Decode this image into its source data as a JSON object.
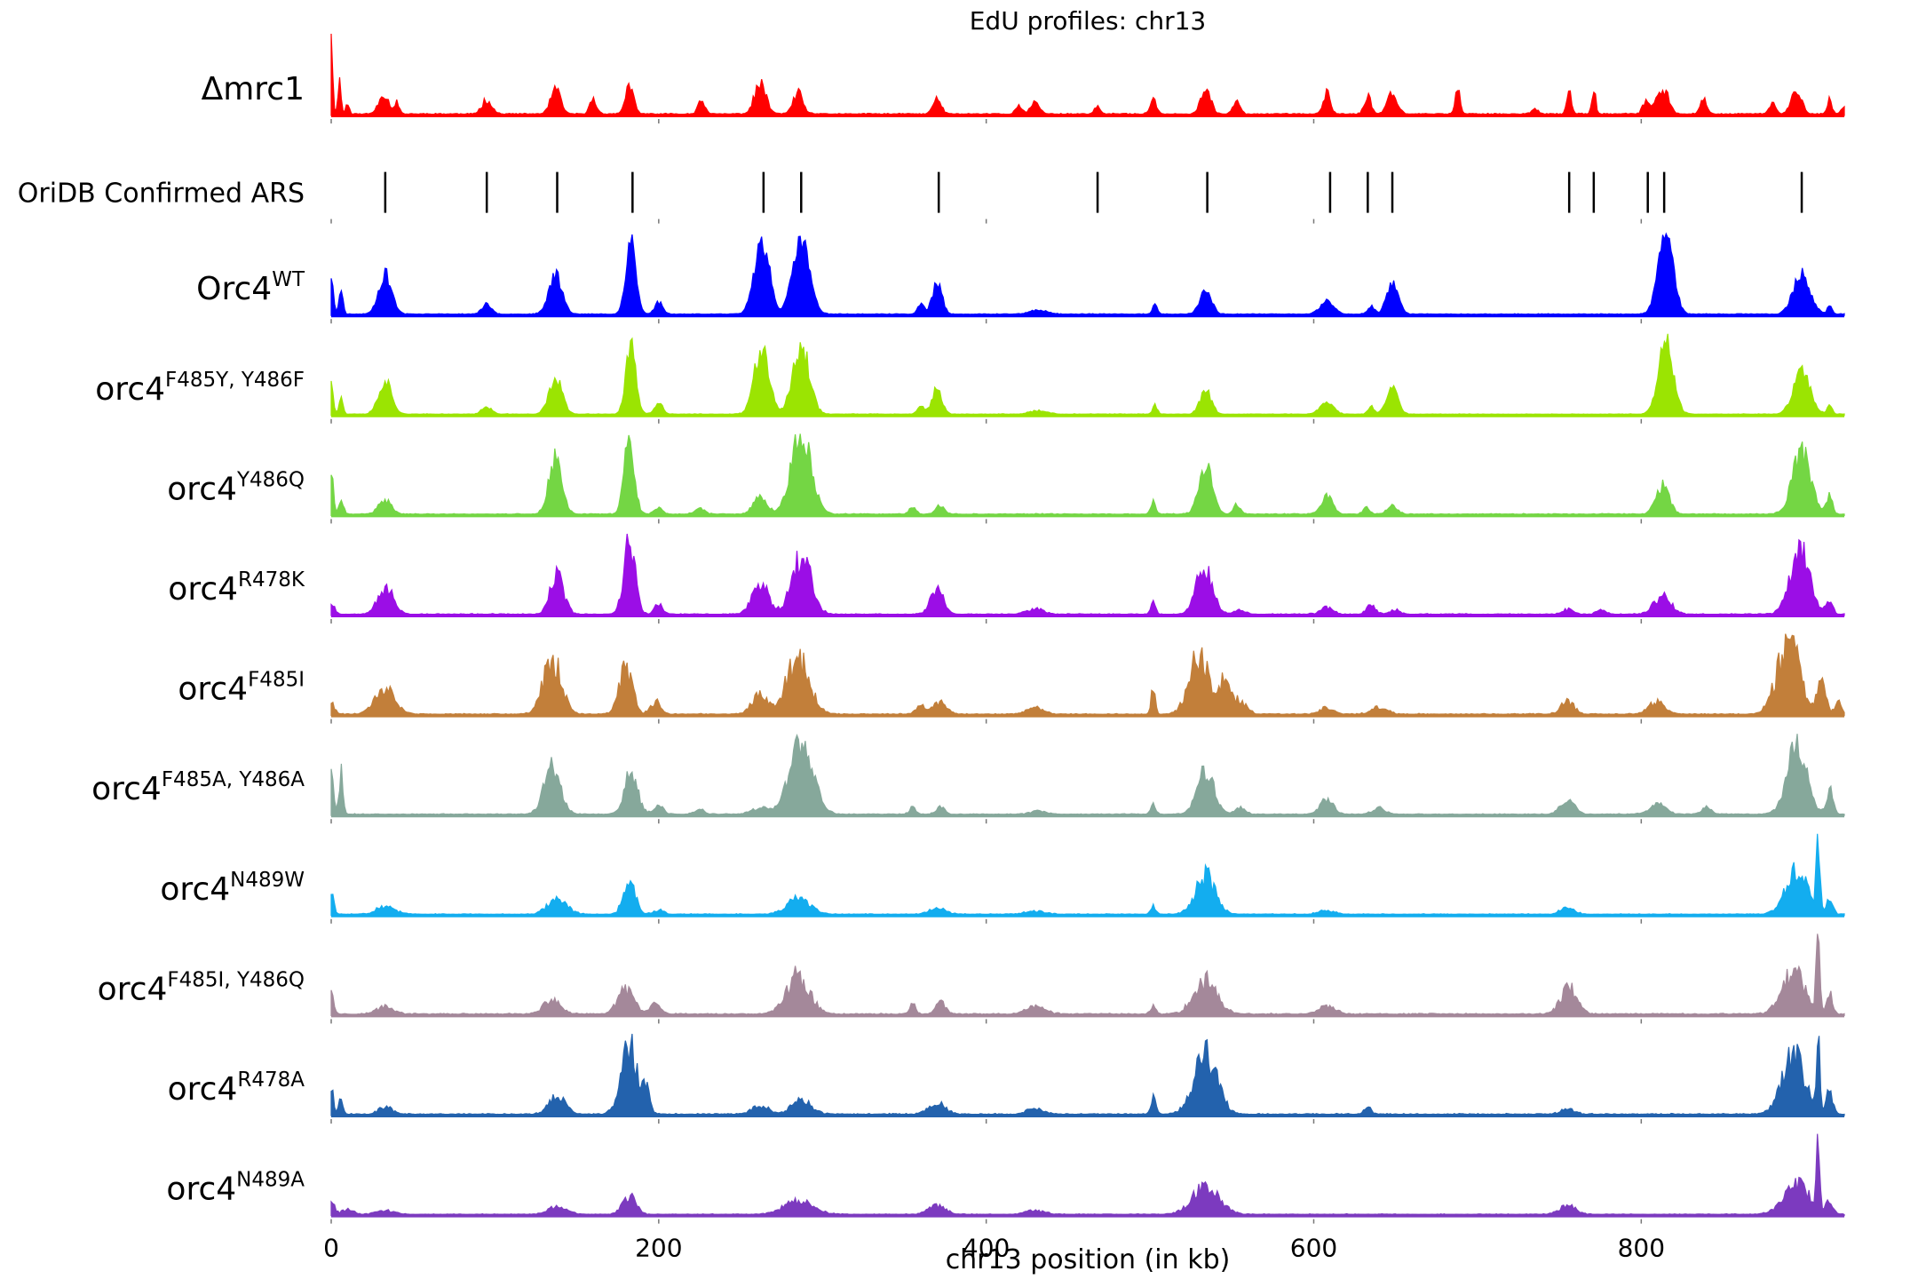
{
  "chart_data": {
    "type": "area",
    "title": "EdU profiles: chr13",
    "xlabel": "chr13 position (in kb)",
    "ylabel": "",
    "xlim": [
      0,
      924
    ],
    "x_ticks": [
      0,
      200,
      400,
      600,
      800
    ],
    "x_tick_labels": [
      "0",
      "200",
      "400",
      "600",
      "800"
    ],
    "grid": false,
    "legend": "none",
    "ars_track": {
      "label": "OriDB Confirmed ARS",
      "positions": [
        33,
        95,
        138,
        184,
        264,
        287,
        371,
        468,
        535,
        610,
        633,
        648,
        756,
        771,
        804,
        814,
        898
      ]
    },
    "tracks": [
      {
        "base": "Δmrc1",
        "sup": "",
        "color": "#ff0000",
        "seed": 11,
        "noise": 0.25,
        "peaks": [
          [
            0,
            1.0,
            0.8
          ],
          [
            5,
            0.35,
            1.0
          ],
          [
            10,
            0.12,
            1.0
          ],
          [
            32,
            0.22,
            3
          ],
          [
            40,
            0.12,
            1.5
          ],
          [
            95,
            0.15,
            3
          ],
          [
            137,
            0.26,
            3
          ],
          [
            160,
            0.16,
            2
          ],
          [
            182,
            0.3,
            2.5
          ],
          [
            226,
            0.17,
            2
          ],
          [
            262,
            0.32,
            3.5
          ],
          [
            285,
            0.22,
            3
          ],
          [
            370,
            0.16,
            2.5
          ],
          [
            420,
            0.08,
            2
          ],
          [
            430,
            0.14,
            2.5
          ],
          [
            468,
            0.1,
            1.5
          ],
          [
            502,
            0.14,
            2
          ],
          [
            534,
            0.26,
            3
          ],
          [
            553,
            0.17,
            2
          ],
          [
            608,
            0.25,
            2
          ],
          [
            633,
            0.2,
            2
          ],
          [
            648,
            0.23,
            3
          ],
          [
            688,
            0.25,
            1.5
          ],
          [
            735,
            0.06,
            2
          ],
          [
            756,
            0.22,
            1.5
          ],
          [
            771,
            0.25,
            1.2
          ],
          [
            803,
            0.15,
            2
          ],
          [
            813,
            0.28,
            3.5
          ],
          [
            838,
            0.15,
            2
          ],
          [
            880,
            0.12,
            2
          ],
          [
            895,
            0.28,
            3
          ],
          [
            915,
            0.15,
            1.5
          ],
          [
            924,
            0.1,
            1.5
          ]
        ]
      },
      {
        "base": "Orc4",
        "sup": "WT",
        "color": "#0000ff",
        "seed": 23,
        "noise": 0.18,
        "peaks": [
          [
            0,
            0.5,
            1.2
          ],
          [
            6,
            0.35,
            1.2
          ],
          [
            33,
            0.5,
            4
          ],
          [
            95,
            0.12,
            3
          ],
          [
            137,
            0.5,
            4
          ],
          [
            183,
            0.95,
            3
          ],
          [
            200,
            0.15,
            2.5
          ],
          [
            263,
            0.95,
            4.5
          ],
          [
            287,
            0.95,
            5
          ],
          [
            360,
            0.12,
            2
          ],
          [
            370,
            0.38,
            3
          ],
          [
            432,
            0.05,
            5
          ],
          [
            503,
            0.12,
            1.5
          ],
          [
            534,
            0.3,
            3.5
          ],
          [
            608,
            0.17,
            4
          ],
          [
            635,
            0.1,
            2
          ],
          [
            648,
            0.38,
            3.5
          ],
          [
            815,
            1.0,
            4.5
          ],
          [
            898,
            0.52,
            5
          ],
          [
            915,
            0.1,
            1.5
          ]
        ]
      },
      {
        "base": "orc4",
        "sup": "F485Y, Y486F",
        "color": "#9be402",
        "seed": 37,
        "noise": 0.2,
        "peaks": [
          [
            0,
            0.5,
            1.2
          ],
          [
            6,
            0.22,
            1.2
          ],
          [
            33,
            0.45,
            4
          ],
          [
            95,
            0.1,
            3
          ],
          [
            137,
            0.48,
            4
          ],
          [
            183,
            0.92,
            3
          ],
          [
            200,
            0.15,
            2.5
          ],
          [
            263,
            0.92,
            4.5
          ],
          [
            287,
            0.92,
            5
          ],
          [
            360,
            0.1,
            2
          ],
          [
            370,
            0.35,
            3
          ],
          [
            432,
            0.05,
            5
          ],
          [
            503,
            0.12,
            1.5
          ],
          [
            534,
            0.32,
            3.5
          ],
          [
            608,
            0.17,
            4
          ],
          [
            635,
            0.1,
            2
          ],
          [
            648,
            0.35,
            3.5
          ],
          [
            815,
            0.95,
            4.5
          ],
          [
            898,
            0.6,
            5
          ],
          [
            915,
            0.12,
            1.5
          ]
        ]
      },
      {
        "base": "orc4",
        "sup": "Y486Q",
        "color": "#74d644",
        "seed": 41,
        "noise": 0.22,
        "peaks": [
          [
            0,
            0.52,
            1.2
          ],
          [
            6,
            0.15,
            1.5
          ],
          [
            33,
            0.16,
            4
          ],
          [
            137,
            0.65,
            4
          ],
          [
            182,
            0.95,
            3
          ],
          [
            200,
            0.08,
            2.5
          ],
          [
            225,
            0.07,
            3
          ],
          [
            262,
            0.2,
            4
          ],
          [
            287,
            0.95,
            6
          ],
          [
            355,
            0.08,
            2
          ],
          [
            372,
            0.1,
            2.5
          ],
          [
            502,
            0.15,
            1.5
          ],
          [
            534,
            0.58,
            4
          ],
          [
            553,
            0.12,
            2
          ],
          [
            608,
            0.22,
            3.5
          ],
          [
            632,
            0.08,
            2
          ],
          [
            648,
            0.1,
            3
          ],
          [
            813,
            0.34,
            4
          ],
          [
            898,
            0.75,
            5.5
          ],
          [
            915,
            0.22,
            1.8
          ]
        ]
      },
      {
        "base": "orc4",
        "sup": "R478K",
        "color": "#9b0ee6",
        "seed": 53,
        "noise": 0.3,
        "peaks": [
          [
            0,
            0.15,
            2
          ],
          [
            33,
            0.32,
            5
          ],
          [
            138,
            0.5,
            4
          ],
          [
            182,
            0.92,
            3.5
          ],
          [
            200,
            0.12,
            2.5
          ],
          [
            262,
            0.38,
            5
          ],
          [
            287,
            0.72,
            6
          ],
          [
            370,
            0.3,
            4
          ],
          [
            430,
            0.07,
            5
          ],
          [
            502,
            0.15,
            1.5
          ],
          [
            533,
            0.62,
            5
          ],
          [
            555,
            0.06,
            3
          ],
          [
            608,
            0.08,
            4
          ],
          [
            635,
            0.1,
            3
          ],
          [
            650,
            0.05,
            3
          ],
          [
            755,
            0.06,
            3
          ],
          [
            775,
            0.05,
            3
          ],
          [
            813,
            0.24,
            5
          ],
          [
            897,
            0.82,
            6
          ],
          [
            915,
            0.15,
            2
          ]
        ]
      },
      {
        "base": "orc4",
        "sup": "F485I",
        "color": "#c27f3a",
        "seed": 61,
        "noise": 0.3,
        "peaks": [
          [
            0,
            0.15,
            2
          ],
          [
            33,
            0.3,
            6
          ],
          [
            135,
            0.65,
            5.5
          ],
          [
            180,
            0.55,
            4
          ],
          [
            198,
            0.15,
            3
          ],
          [
            262,
            0.22,
            5
          ],
          [
            285,
            0.65,
            7
          ],
          [
            360,
            0.1,
            3
          ],
          [
            372,
            0.15,
            4
          ],
          [
            430,
            0.08,
            5
          ],
          [
            502,
            0.32,
            1.2
          ],
          [
            530,
            0.7,
            6
          ],
          [
            545,
            0.35,
            4
          ],
          [
            555,
            0.15,
            4
          ],
          [
            608,
            0.08,
            4
          ],
          [
            640,
            0.08,
            5
          ],
          [
            755,
            0.15,
            4
          ],
          [
            810,
            0.15,
            5
          ],
          [
            890,
            0.85,
            7
          ],
          [
            910,
            0.45,
            2.5
          ],
          [
            920,
            0.15,
            2
          ]
        ]
      },
      {
        "base": "orc4",
        "sup": "F485A, Y486A",
        "color": "#86a89b",
        "seed": 71,
        "noise": 0.25,
        "peaks": [
          [
            0,
            0.65,
            1.2
          ],
          [
            6,
            0.52,
            1.2
          ],
          [
            135,
            0.6,
            5
          ],
          [
            183,
            0.52,
            4
          ],
          [
            200,
            0.1,
            3
          ],
          [
            225,
            0.06,
            3
          ],
          [
            262,
            0.08,
            5
          ],
          [
            287,
            0.92,
            7
          ],
          [
            355,
            0.08,
            2
          ],
          [
            372,
            0.1,
            2.5
          ],
          [
            432,
            0.04,
            5
          ],
          [
            502,
            0.12,
            1.5
          ],
          [
            534,
            0.55,
            5
          ],
          [
            555,
            0.08,
            3
          ],
          [
            608,
            0.2,
            4
          ],
          [
            640,
            0.08,
            4
          ],
          [
            755,
            0.2,
            4
          ],
          [
            810,
            0.12,
            5
          ],
          [
            840,
            0.08,
            3
          ],
          [
            895,
            0.82,
            6
          ],
          [
            915,
            0.3,
            2
          ]
        ]
      },
      {
        "base": "orc4",
        "sup": "N489W",
        "color": "#13adef",
        "seed": 83,
        "noise": 0.3,
        "peaks": [
          [
            0,
            0.3,
            1.5
          ],
          [
            33,
            0.1,
            6
          ],
          [
            138,
            0.2,
            6
          ],
          [
            182,
            0.45,
            3.5
          ],
          [
            200,
            0.06,
            3
          ],
          [
            285,
            0.2,
            7
          ],
          [
            370,
            0.08,
            5
          ],
          [
            430,
            0.04,
            6
          ],
          [
            502,
            0.12,
            1.5
          ],
          [
            534,
            0.5,
            6
          ],
          [
            608,
            0.05,
            5
          ],
          [
            755,
            0.1,
            4
          ],
          [
            895,
            0.55,
            7
          ],
          [
            908,
            1.0,
            1.0
          ],
          [
            915,
            0.2,
            2
          ]
        ]
      },
      {
        "base": "orc4",
        "sup": "F485I, Y486Q",
        "color": "#a4889a",
        "seed": 97,
        "noise": 0.3,
        "peaks": [
          [
            0,
            0.3,
            1.5
          ],
          [
            33,
            0.08,
            5
          ],
          [
            135,
            0.15,
            5
          ],
          [
            180,
            0.25,
            5
          ],
          [
            198,
            0.1,
            3
          ],
          [
            285,
            0.4,
            7
          ],
          [
            355,
            0.1,
            2
          ],
          [
            372,
            0.12,
            3
          ],
          [
            430,
            0.08,
            6
          ],
          [
            502,
            0.1,
            1.5
          ],
          [
            534,
            0.35,
            7
          ],
          [
            608,
            0.08,
            5
          ],
          [
            756,
            0.28,
            5
          ],
          [
            893,
            0.45,
            7
          ],
          [
            908,
            0.95,
            1.0
          ],
          [
            915,
            0.2,
            2
          ]
        ]
      },
      {
        "base": "orc4",
        "sup": "R478A",
        "color": "#2362ad",
        "seed": 101,
        "noise": 0.3,
        "peaks": [
          [
            0,
            0.3,
            1.2
          ],
          [
            6,
            0.2,
            1.2
          ],
          [
            33,
            0.08,
            4
          ],
          [
            138,
            0.2,
            5
          ],
          [
            182,
            0.75,
            5
          ],
          [
            192,
            0.25,
            2.5
          ],
          [
            262,
            0.1,
            5
          ],
          [
            287,
            0.15,
            6
          ],
          [
            370,
            0.12,
            5
          ],
          [
            430,
            0.06,
            5
          ],
          [
            502,
            0.18,
            1.5
          ],
          [
            534,
            0.68,
            7
          ],
          [
            633,
            0.08,
            2
          ],
          [
            755,
            0.06,
            4
          ],
          [
            893,
            0.65,
            7
          ],
          [
            908,
            0.95,
            1.0
          ],
          [
            915,
            0.25,
            2
          ]
        ]
      },
      {
        "base": "orc4",
        "sup": "N489A",
        "color": "#7c3abf",
        "seed": 113,
        "noise": 0.3,
        "peaks": [
          [
            0,
            0.2,
            2
          ],
          [
            10,
            0.08,
            3
          ],
          [
            33,
            0.06,
            5
          ],
          [
            138,
            0.1,
            6
          ],
          [
            182,
            0.25,
            4
          ],
          [
            285,
            0.18,
            9
          ],
          [
            370,
            0.12,
            5
          ],
          [
            430,
            0.05,
            6
          ],
          [
            534,
            0.38,
            8
          ],
          [
            755,
            0.12,
            5
          ],
          [
            895,
            0.4,
            8
          ],
          [
            908,
            1.0,
            1.0
          ],
          [
            915,
            0.2,
            2
          ]
        ]
      }
    ]
  }
}
